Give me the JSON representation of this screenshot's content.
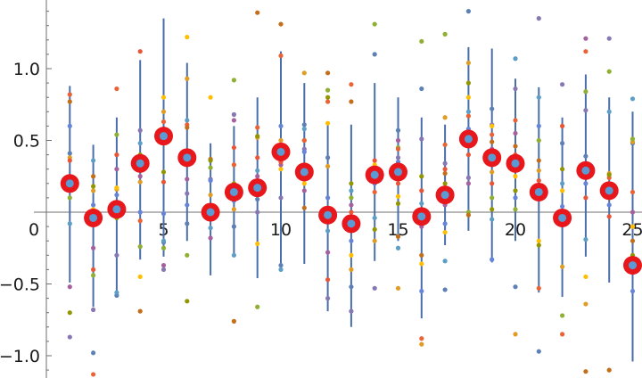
{
  "chart_data": {
    "type": "scatter",
    "title": "",
    "xlabel": "",
    "ylabel": "",
    "xlim": [
      0,
      25.5
    ],
    "ylim": [
      -1.14,
      1.47
    ],
    "x_ticks": [
      5,
      10,
      15,
      20,
      25
    ],
    "x_tick_labels": [
      "5",
      "10",
      "15",
      "20",
      "25"
    ],
    "y_ticks": [
      -1.0,
      -0.5,
      0.5,
      1.0
    ],
    "y_tick_labels": [
      "−1.0",
      "−0.5",
      "0.5",
      "1.0"
    ],
    "origin_label": "0",
    "grid": false,
    "legend": "none",
    "colors": {
      "axis": "#6f6f6f",
      "mean_marker": "#e8171b",
      "mean_center": "#5b9bd5",
      "error_bar": "#4a6ea9"
    },
    "sample_colors": [
      "#5e81b5",
      "#e19c24",
      "#8fb032",
      "#eb6235",
      "#8778b3",
      "#c56e1a",
      "#5d9ec7",
      "#ffbf00",
      "#a5609d",
      "#929600",
      "#e95536",
      "#6685d9"
    ],
    "means": {
      "x": [
        1,
        2,
        3,
        4,
        5,
        6,
        7,
        8,
        9,
        10,
        11,
        12,
        13,
        14,
        15,
        16,
        17,
        18,
        19,
        20,
        21,
        22,
        23,
        24,
        25
      ],
      "y": [
        0.2,
        -0.04,
        0.02,
        0.34,
        0.53,
        0.38,
        0.0,
        0.14,
        0.17,
        0.42,
        0.28,
        -0.02,
        -0.08,
        0.26,
        0.28,
        -0.03,
        0.12,
        0.51,
        0.38,
        0.34,
        0.14,
        -0.04,
        0.29,
        0.15,
        -0.37
      ]
    },
    "error_bars": {
      "low": [
        -0.49,
        -0.66,
        -0.59,
        -0.33,
        -0.31,
        -0.2,
        -0.44,
        -0.31,
        -0.46,
        -0.38,
        -0.36,
        -0.69,
        -0.8,
        -0.34,
        -0.2,
        -0.74,
        -0.23,
        -0.13,
        -0.35,
        -0.2,
        -0.56,
        -0.59,
        -0.31,
        -0.49,
        -1.04
      ],
      "high": [
        0.88,
        0.47,
        0.66,
        1.06,
        1.35,
        1.04,
        0.48,
        0.6,
        0.8,
        1.12,
        0.9,
        0.63,
        0.61,
        0.9,
        0.8,
        0.66,
        0.61,
        1.15,
        1.14,
        0.93,
        0.87,
        0.66,
        0.96,
        0.8,
        0.7
      ]
    },
    "samples": [
      [
        0.41,
        0.38,
        0.1,
        0.82,
        -0.87,
        0.77,
        -0.08,
        0.2,
        -0.52,
        -0.7,
        0.36,
        0.6
      ],
      [
        -0.98,
        0.15,
        -0.44,
        -1.13,
        -0.68,
        0.25,
        0.36,
        0.02,
        -0.25,
        0.18,
        -0.4,
        0.05
      ],
      [
        -0.58,
        0.16,
        0.54,
        0.86,
        -0.3,
        -0.02,
        -0.56,
        0.17,
        0.3,
        -0.04,
        0.4,
        0.12
      ],
      [
        0.3,
        0.21,
        -0.24,
        -0.06,
        0.57,
        -0.69,
        0.48,
        -0.45,
        0.25,
        0.4,
        1.12,
        0.0
      ],
      [
        -0.21,
        0.7,
        -0.25,
        0.63,
        -0.4,
        0.48,
        -0.2,
        0.8,
        -0.37,
        0.28,
        0.21,
        -0.01
      ],
      [
        -0.08,
        0.93,
        -0.3,
        0.61,
        0.13,
        0.59,
        0.64,
        1.22,
        0.23,
        -0.62,
        0.41,
        0.05
      ],
      [
        0.0,
        0.12,
        0.31,
        -0.02,
        0.23,
        0.37,
        -0.11,
        0.8,
        -0.18,
        0.36,
        0.03,
        0.22
      ],
      [
        -0.1,
        0.02,
        0.92,
        0.33,
        0.68,
        -0.76,
        -0.3,
        0.13,
        0.64,
        0.2,
        0.45,
        0.08
      ],
      [
        0.09,
        0.52,
        -0.66,
        0.59,
        0.0,
        1.39,
        0.29,
        -0.22,
        0.25,
        0.53,
        0.38,
        0.12
      ],
      [
        -0.37,
        0.5,
        0.45,
        1.09,
        0.1,
        1.31,
        -0.4,
        0.3,
        0.33,
        0.46,
        0.35,
        0.6
      ],
      [
        0.61,
        0.97,
        0.5,
        0.5,
        0.44,
        0.03,
        0.58,
        0.2,
        0.15,
        0.33,
        0.25,
        0.42
      ],
      [
        0.38,
        0.32,
        0.85,
        0.77,
        -0.6,
        0.97,
        -0.13,
        0.62,
        -0.28,
        0.8,
        -0.47,
        0.1
      ],
      [
        -0.52,
        -0.4,
        0.1,
        0.89,
        -0.69,
        0.77,
        0.15,
        -0.3,
        0.05,
        0.2,
        0.0,
        -0.2
      ],
      [
        1.1,
        -0.2,
        1.31,
        0.14,
        -0.53,
        0.24,
        -0.04,
        0.33,
        0.3,
        -0.12,
        0.36,
        0.2
      ],
      [
        0.57,
        -0.53,
        0.45,
        0.44,
        0.38,
        -0.17,
        -0.25,
        0.11,
        0.5,
        0.06,
        0.2,
        0.35
      ],
      [
        0.86,
        -0.92,
        1.19,
        -0.88,
        0.51,
        -0.3,
        0.06,
        -0.36,
        -0.1,
        0.25,
        0.15,
        -0.55
      ],
      [
        -0.54,
        0.66,
        1.24,
        0.47,
        0.34,
        0.27,
        -0.34,
        -0.14,
        0.05,
        0.2,
        0.3,
        -0.08
      ],
      [
        1.4,
        1.04,
        0.0,
        0.67,
        0.24,
        -0.02,
        0.7,
        0.8,
        0.2,
        0.9,
        0.4,
        0.58
      ],
      [
        0.72,
        0.28,
        0.1,
        0.54,
        0.61,
        0.49,
        -0.05,
        0.6,
        0.44,
        0.02,
        0.2,
        -0.33
      ],
      [
        -0.52,
        -0.85,
        0.02,
        0.64,
        0.86,
        0.46,
        1.07,
        0.25,
        0.55,
        0.15,
        0.4,
        0.1
      ],
      [
        -0.97,
        0.29,
        0.5,
        -0.53,
        1.35,
        0.36,
        0.8,
        -0.2,
        0.1,
        -0.23,
        0.22,
        0.6
      ],
      [
        0.48,
        -0.38,
        -0.72,
        -0.85,
        0.89,
        0.0,
        0.2,
        0.15,
        -0.05,
        0.3,
        0.6,
        0.04
      ],
      [
        0.39,
        -0.64,
        0.84,
        1.12,
        0.71,
        -1.11,
        -0.19,
        -0.45,
        1.21,
        0.3,
        0.1,
        0.2
      ],
      [
        0.2,
        0.27,
        0.98,
        0.24,
        1.21,
        -1.1,
        0.7,
        0.1,
        0.2,
        0.26,
        -0.03,
        0.05
      ],
      [
        0.48,
        0.49,
        0.51,
        0.14,
        -0.33,
        -0.2,
        0.79,
        -0.1,
        0.0,
        -0.3,
        -0.4,
        -0.55
      ]
    ]
  }
}
